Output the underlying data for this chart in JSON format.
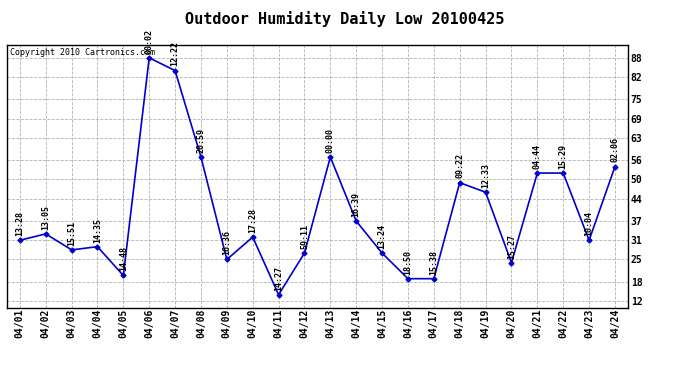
{
  "title": "Outdoor Humidity Daily Low 20100425",
  "copyright": "Copyright 2010 Cartronics.com",
  "x_labels": [
    "04/01",
    "04/02",
    "04/03",
    "04/04",
    "04/05",
    "04/06",
    "04/07",
    "04/08",
    "04/09",
    "04/10",
    "04/11",
    "04/12",
    "04/13",
    "04/14",
    "04/15",
    "04/16",
    "04/17",
    "04/18",
    "04/19",
    "04/20",
    "04/21",
    "04/22",
    "04/23",
    "04/24"
  ],
  "y_values": [
    31,
    33,
    28,
    29,
    20,
    88,
    84,
    57,
    25,
    32,
    14,
    27,
    57,
    37,
    27,
    19,
    19,
    49,
    46,
    24,
    52,
    52,
    31,
    54
  ],
  "time_labels": [
    "13:28",
    "13:05",
    "15:51",
    "14:35",
    "14:48",
    "00:02",
    "12:22",
    "20:59",
    "16:36",
    "17:28",
    "14:27",
    "59:11",
    "00:00",
    "16:39",
    "13:24",
    "18:50",
    "15:38",
    "09:22",
    "12:33",
    "15:27",
    "04:44",
    "15:29",
    "10:04",
    "02:06"
  ],
  "line_color": "#0000cc",
  "marker_color": "#0000cc",
  "bg_color": "#ffffff",
  "grid_color": "#aaaaaa",
  "yticks": [
    12,
    18,
    25,
    31,
    37,
    44,
    50,
    56,
    63,
    69,
    75,
    82,
    88
  ],
  "ylim": [
    10,
    92
  ],
  "title_fontsize": 11,
  "tick_fontsize": 7,
  "label_fontsize": 6,
  "copyright_fontsize": 6
}
